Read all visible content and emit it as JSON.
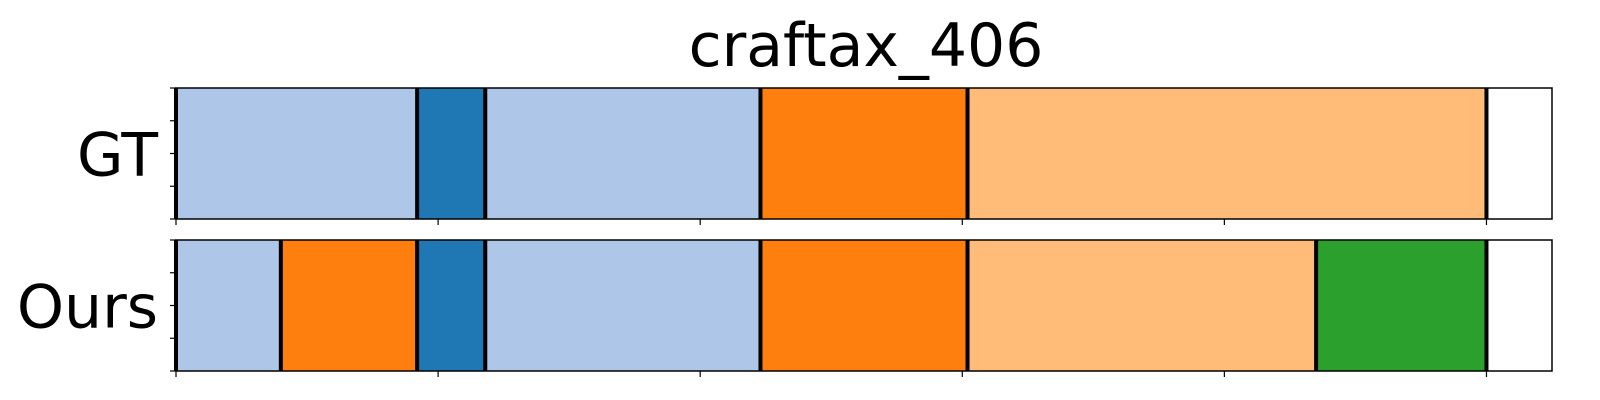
{
  "chart_data": {
    "type": "segmentation-timeline",
    "title": "craftax_406",
    "x_range": [
      0,
      525
    ],
    "x_ticks": [
      0,
      100,
      200,
      300,
      400,
      500
    ],
    "x_tick_labels_visible": false,
    "y_tick_labels_visible": false,
    "colors": {
      "light_blue": "#aec7e8",
      "blue": "#1f77b4",
      "orange": "#ff7f0e",
      "light_orange": "#ffbb78",
      "green": "#2ca02c",
      "boundary": "#000000",
      "background": "#ffffff"
    },
    "rows": [
      {
        "label": "GT",
        "segments": [
          {
            "start": 0,
            "end": 92,
            "color": "light_blue"
          },
          {
            "start": 92,
            "end": 118,
            "color": "blue"
          },
          {
            "start": 118,
            "end": 223,
            "color": "light_blue"
          },
          {
            "start": 223,
            "end": 302,
            "color": "orange"
          },
          {
            "start": 302,
            "end": 500,
            "color": "light_orange"
          }
        ]
      },
      {
        "label": "Ours",
        "segments": [
          {
            "start": 0,
            "end": 40,
            "color": "light_blue"
          },
          {
            "start": 40,
            "end": 92,
            "color": "orange"
          },
          {
            "start": 92,
            "end": 118,
            "color": "blue"
          },
          {
            "start": 118,
            "end": 223,
            "color": "light_blue"
          },
          {
            "start": 223,
            "end": 302,
            "color": "orange"
          },
          {
            "start": 302,
            "end": 435,
            "color": "light_orange"
          },
          {
            "start": 435,
            "end": 500,
            "color": "green"
          }
        ]
      }
    ]
  }
}
